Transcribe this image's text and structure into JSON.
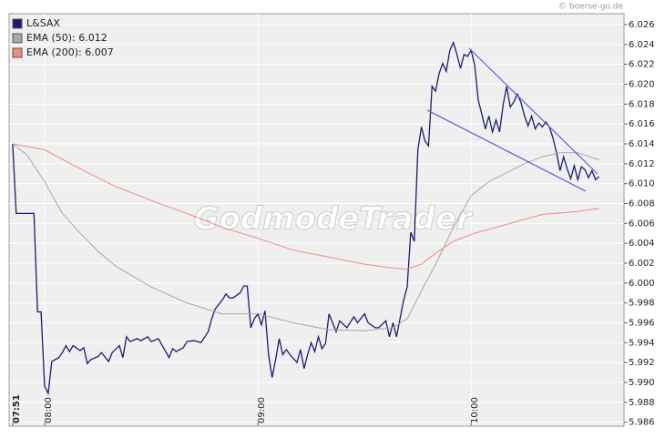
{
  "chart_data": {
    "type": "line",
    "source": "© boerse-go.de",
    "watermark": "GodmodeTrader",
    "xlim": [
      "07:50",
      "10:43"
    ],
    "xticks": [
      "07:51",
      "08:00",
      "09:00",
      "10:00"
    ],
    "ylim": [
      5.9856,
      6.0271
    ],
    "yticks": [
      5.986,
      5.988,
      {
        "value": 5.99,
        "label": "5.990"
      },
      5.992,
      5.994,
      5.996,
      5.998,
      {
        "value": 6.0,
        "label": "6.000"
      },
      6.002,
      6.004,
      6.006,
      6.008,
      {
        "value": 6.01,
        "label": "6.010"
      },
      6.012,
      6.014,
      6.016,
      6.018,
      {
        "value": 6.02,
        "label": "6.020"
      },
      6.022,
      6.024,
      6.026
    ],
    "grid": true,
    "legend": "top-left",
    "series": [
      {
        "name": "L&SAX",
        "color": "#1c1c6e",
        "x": [
          "07:51",
          "07:52",
          "07:57",
          "07:58",
          "07:59",
          "08:00",
          "08:01",
          "08:02",
          "08:04",
          "08:05",
          "08:06",
          "08:07",
          "08:08",
          "08:10",
          "08:11",
          "08:12",
          "08:13",
          "08:15",
          "08:16",
          "08:18",
          "08:19",
          "08:21",
          "08:22",
          "08:23",
          "08:24",
          "08:26",
          "08:27",
          "08:29",
          "08:30",
          "08:32",
          "08:35",
          "08:36",
          "08:37",
          "08:39",
          "08:40",
          "08:42",
          "08:44",
          "08:46",
          "08:47",
          "08:48",
          "08:50",
          "08:51",
          "08:52",
          "08:53",
          "08:55",
          "08:56",
          "08:57",
          "08:58",
          "08:59",
          "09:00",
          "09:01",
          "09:02",
          "09:03",
          "09:04",
          "09:05",
          "09:06",
          "09:07",
          "09:08",
          "09:09",
          "09:11",
          "09:12",
          "09:13",
          "09:14",
          "09:15",
          "09:16",
          "09:17",
          "09:18",
          "09:19",
          "09:20",
          "09:22",
          "09:23",
          "09:25",
          "09:27",
          "09:28",
          "09:30",
          "09:31",
          "09:33",
          "09:34",
          "09:36",
          "09:37",
          "09:38",
          "09:39",
          "09:41",
          "09:42",
          "09:43",
          "09:44",
          "09:45",
          "09:46",
          "09:47",
          "09:48",
          "09:49",
          "09:50",
          "09:51",
          "09:52",
          "09:53",
          "09:54",
          "09:55",
          "09:56",
          "09:57",
          "09:58",
          "09:59",
          "10:00",
          "10:01",
          "10:02",
          "10:03",
          "10:04",
          "10:05",
          "10:06",
          "10:07",
          "10:08",
          "10:09",
          "10:10",
          "10:11",
          "10:12",
          "10:13",
          "10:14",
          "10:15",
          "10:16",
          "10:17",
          "10:18",
          "10:19",
          "10:20",
          "10:21",
          "10:22",
          "10:23",
          "10:24",
          "10:25",
          "10:26",
          "10:27",
          "10:28",
          "10:29",
          "10:30",
          "10:31",
          "10:32",
          "10:33",
          "10:34",
          "10:35",
          "10:36"
        ],
        "values": [
          6.014,
          6.007,
          6.007,
          5.9971,
          5.9971,
          5.9896,
          5.9889,
          5.9921,
          5.9925,
          5.993,
          5.9937,
          5.9931,
          5.9937,
          5.9932,
          5.9935,
          5.9919,
          5.9923,
          5.9926,
          5.993,
          5.9921,
          5.993,
          5.9937,
          5.9925,
          5.9946,
          5.9941,
          5.9944,
          5.9942,
          5.9946,
          5.9941,
          5.9944,
          5.9925,
          5.9934,
          5.9931,
          5.9935,
          5.9941,
          5.9942,
          5.994,
          5.9951,
          5.9964,
          5.9974,
          5.9983,
          5.9989,
          5.9985,
          5.9985,
          5.999,
          5.9997,
          5.9997,
          5.9955,
          5.9964,
          5.9969,
          5.9958,
          5.9972,
          5.9928,
          5.9905,
          5.9923,
          5.9944,
          5.9928,
          5.9933,
          5.9928,
          5.992,
          5.9933,
          5.9914,
          5.9928,
          5.994,
          5.9931,
          5.9946,
          5.9934,
          5.9939,
          5.9969,
          5.9951,
          5.9962,
          5.9955,
          5.9966,
          5.996,
          5.9969,
          5.996,
          5.9955,
          5.9955,
          5.9962,
          5.9946,
          5.996,
          5.9946,
          5.9983,
          5.9996,
          6.0051,
          6.0042,
          6.0134,
          6.0157,
          6.0143,
          6.0138,
          6.0198,
          6.0193,
          6.0211,
          6.0221,
          6.0213,
          6.0234,
          6.0242,
          6.023,
          6.0216,
          6.023,
          6.0228,
          6.0234,
          6.0219,
          6.0184,
          6.017,
          6.0155,
          6.0168,
          6.0152,
          6.0164,
          6.0152,
          6.0179,
          6.0198,
          6.0177,
          6.0182,
          6.019,
          6.0182,
          6.0168,
          6.0158,
          6.0168,
          6.0155,
          6.0161,
          6.0157,
          6.0162,
          6.0157,
          6.0146,
          6.0131,
          6.0113,
          6.0127,
          6.0115,
          6.0105,
          6.0118,
          6.0104,
          6.0117,
          6.0114,
          6.0106,
          6.0113,
          6.0104,
          6.0107
        ]
      },
      {
        "name": "EMA (50): 6.012",
        "color": "#a8a8a8",
        "x": [
          "07:51",
          "07:55",
          "08:00",
          "08:05",
          "08:10",
          "08:15",
          "08:20",
          "08:30",
          "08:40",
          "08:50",
          "09:00",
          "09:10",
          "09:20",
          "09:30",
          "09:38",
          "09:42",
          "09:46",
          "09:50",
          "09:55",
          "10:00",
          "10:05",
          "10:10",
          "10:15",
          "10:20",
          "10:25",
          "10:30",
          "10:36"
        ],
        "values": [
          6.014,
          6.0129,
          6.0102,
          6.007,
          6.005,
          6.0032,
          6.0017,
          5.9996,
          5.998,
          5.9969,
          5.9969,
          5.996,
          5.9953,
          5.9952,
          5.9955,
          5.9964,
          5.9992,
          6.0019,
          6.0056,
          6.0088,
          6.0102,
          6.0111,
          6.012,
          6.0127,
          6.0131,
          6.0131,
          6.0124
        ]
      },
      {
        "name": "EMA (200): 6.007",
        "color": "#f08a80",
        "x": [
          "07:51",
          "08:00",
          "08:10",
          "08:20",
          "08:30",
          "08:40",
          "08:50",
          "09:00",
          "09:10",
          "09:20",
          "09:30",
          "09:38",
          "09:42",
          "09:46",
          "09:50",
          "09:55",
          "10:00",
          "10:10",
          "10:20",
          "10:30",
          "10:36"
        ],
        "values": [
          6.014,
          6.0134,
          6.0115,
          6.0097,
          6.0083,
          6.007,
          6.0056,
          6.0045,
          6.0033,
          6.0026,
          6.0019,
          6.0015,
          6.0014,
          6.0019,
          6.003,
          6.0042,
          6.0049,
          6.0059,
          6.0069,
          6.0072,
          6.0075
        ]
      }
    ]
  }
}
